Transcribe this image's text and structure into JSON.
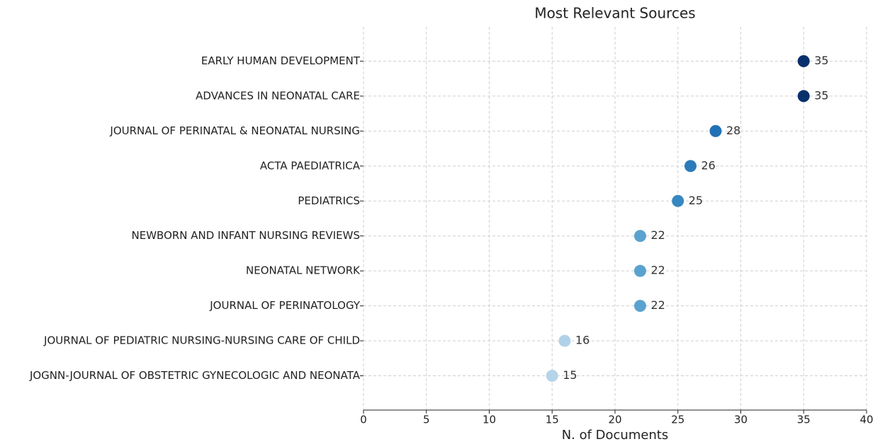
{
  "chart_data": {
    "type": "dot",
    "title": "Most Relevant Sources",
    "xlabel": "N. of Documents",
    "categories": [
      "EARLY HUMAN DEVELOPMENT",
      "ADVANCES IN NEONATAL CARE",
      "JOURNAL OF PERINATAL & NEONATAL NURSING",
      "ACTA PAEDIATRICA",
      "PEDIATRICS",
      "NEWBORN AND INFANT NURSING REVIEWS",
      "NEONATAL NETWORK",
      "JOURNAL OF PERINATOLOGY",
      "JOURNAL OF PEDIATRIC NURSING-NURSING CARE OF CHILD",
      "JOGNN-JOURNAL OF OBSTETRIC GYNECOLOGIC AND NEONATA"
    ],
    "values": [
      35,
      35,
      28,
      26,
      25,
      22,
      22,
      22,
      16,
      15
    ],
    "colors": [
      "#08306b",
      "#08306b",
      "#2171b5",
      "#2b7bba",
      "#3787c0",
      "#5aa2cf",
      "#5aa2cf",
      "#5aa2cf",
      "#b0d2e8",
      "#b5d4e9"
    ],
    "xlim": [
      0,
      40
    ],
    "xticks": [
      0,
      5,
      10,
      15,
      20,
      25,
      30,
      35,
      40
    ],
    "grid": true
  }
}
